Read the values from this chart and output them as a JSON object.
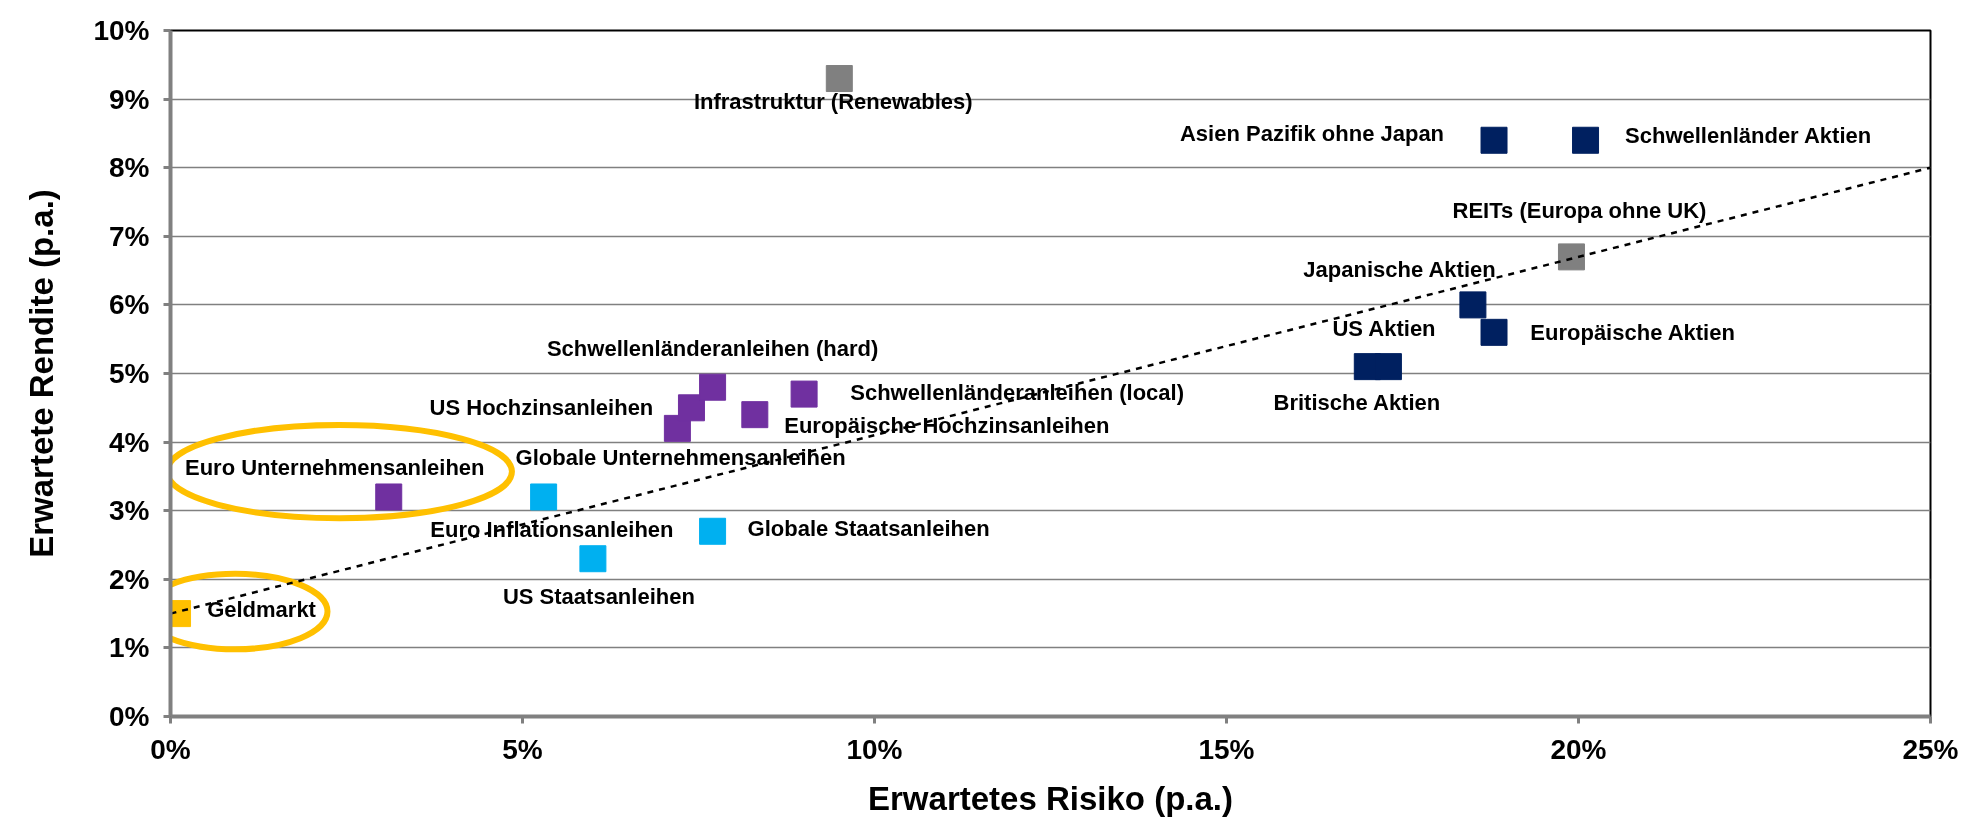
{
  "chart_data": {
    "type": "scatter",
    "xlabel": "Erwartetes Risiko (p.a.)",
    "ylabel": "Erwartete Rendite (p.a.)",
    "marker": "square",
    "grid": "y",
    "xlim": [
      0,
      25
    ],
    "xticks": [
      {
        "value": 0,
        "label": "0%"
      },
      {
        "value": 5,
        "label": "5%"
      },
      {
        "value": 10,
        "label": "10%"
      },
      {
        "value": 15,
        "label": "15%"
      },
      {
        "value": 20,
        "label": "20%"
      },
      {
        "value": 25,
        "label": "25%"
      }
    ],
    "ylim": [
      0,
      10
    ],
    "yticks": [
      {
        "value": 0,
        "label": "0%"
      },
      {
        "value": 1,
        "label": "1%"
      },
      {
        "value": 2,
        "label": "2%"
      },
      {
        "value": 3,
        "label": "3%"
      },
      {
        "value": 4,
        "label": "4%"
      },
      {
        "value": 5,
        "label": "5%"
      },
      {
        "value": 6,
        "label": "6%"
      },
      {
        "value": 7,
        "label": "7%"
      },
      {
        "value": 8,
        "label": "8%"
      },
      {
        "value": 9,
        "label": "9%"
      },
      {
        "value": 10,
        "label": "10%"
      }
    ],
    "series": [
      {
        "color": "#ffc000",
        "x": [
          0.1
        ],
        "values": [
          1.5
        ]
      },
      {
        "color": "#7030a0",
        "x": [
          3.1,
          7.2,
          7.4,
          7.7,
          8.3,
          9.0
        ],
        "values": [
          3.2,
          4.2,
          4.5,
          4.8,
          4.4,
          4.7
        ]
      },
      {
        "color": "#00b0f0",
        "x": [
          5.3,
          6.0,
          7.7
        ],
        "values": [
          3.2,
          2.3,
          2.7
        ]
      },
      {
        "color": "#002060",
        "x": [
          17.0,
          17.3,
          18.5,
          18.8,
          18.8,
          20.1
        ],
        "values": [
          5.1,
          5.1,
          6.0,
          5.6,
          8.4,
          8.4
        ]
      },
      {
        "color": "#808080",
        "x": [
          9.5,
          19.9
        ],
        "values": [
          9.3,
          6.7
        ]
      },
      {
        "type": "line",
        "color": "#000000",
        "line_style": "dashed",
        "marker": "none",
        "x": [
          0,
          25
        ],
        "values": [
          1.5,
          8.0
        ]
      }
    ],
    "annotations": [
      {
        "text": "Infrastruktur (Renewables)",
        "x": 9.5,
        "y": 9.3
      },
      {
        "text": "Asien Pazifik ohne Japan",
        "x": 18.8,
        "y": 8.4
      },
      {
        "text": "Schwellenländer Aktien",
        "x": 20.1,
        "y": 8.4
      },
      {
        "text": "REITs (Europa ohne UK)",
        "x": 19.9,
        "y": 6.7
      },
      {
        "text": "Japanische Aktien",
        "x": 18.5,
        "y": 6.0
      },
      {
        "text": "Schwellenländeranleihen (hard)",
        "x": 7.7,
        "y": 4.8
      },
      {
        "text": "US Aktien",
        "x": 17.3,
        "y": 5.1
      },
      {
        "text": "Europäische Aktien",
        "x": 18.8,
        "y": 5.6
      },
      {
        "text": "Schwellenländeranleihen (local)",
        "x": 9.0,
        "y": 4.7
      },
      {
        "text": "US Hochzinsanleihen",
        "x": 7.4,
        "y": 4.5
      },
      {
        "text": "Britische Aktien",
        "x": 17.0,
        "y": 5.1
      },
      {
        "text": "Europäische Hochzinsanleihen",
        "x": 8.3,
        "y": 4.4
      },
      {
        "text": "Globale Unternehmensanleihen",
        "x": 5.3,
        "y": 3.2
      },
      {
        "text": "Euro Unternehmensanleihen",
        "x": 3.1,
        "y": 3.2
      },
      {
        "text": "Euro Inflationsanleihen",
        "x": 6.0,
        "y": 2.3
      },
      {
        "text": "Globale Staatsanleihen",
        "x": 7.7,
        "y": 2.7
      },
      {
        "text": "US Staatsanleihen",
        "x": 6.0,
        "y": 2.3
      },
      {
        "text": "Geldmarkt",
        "x": 0.1,
        "y": 1.5
      }
    ]
  }
}
